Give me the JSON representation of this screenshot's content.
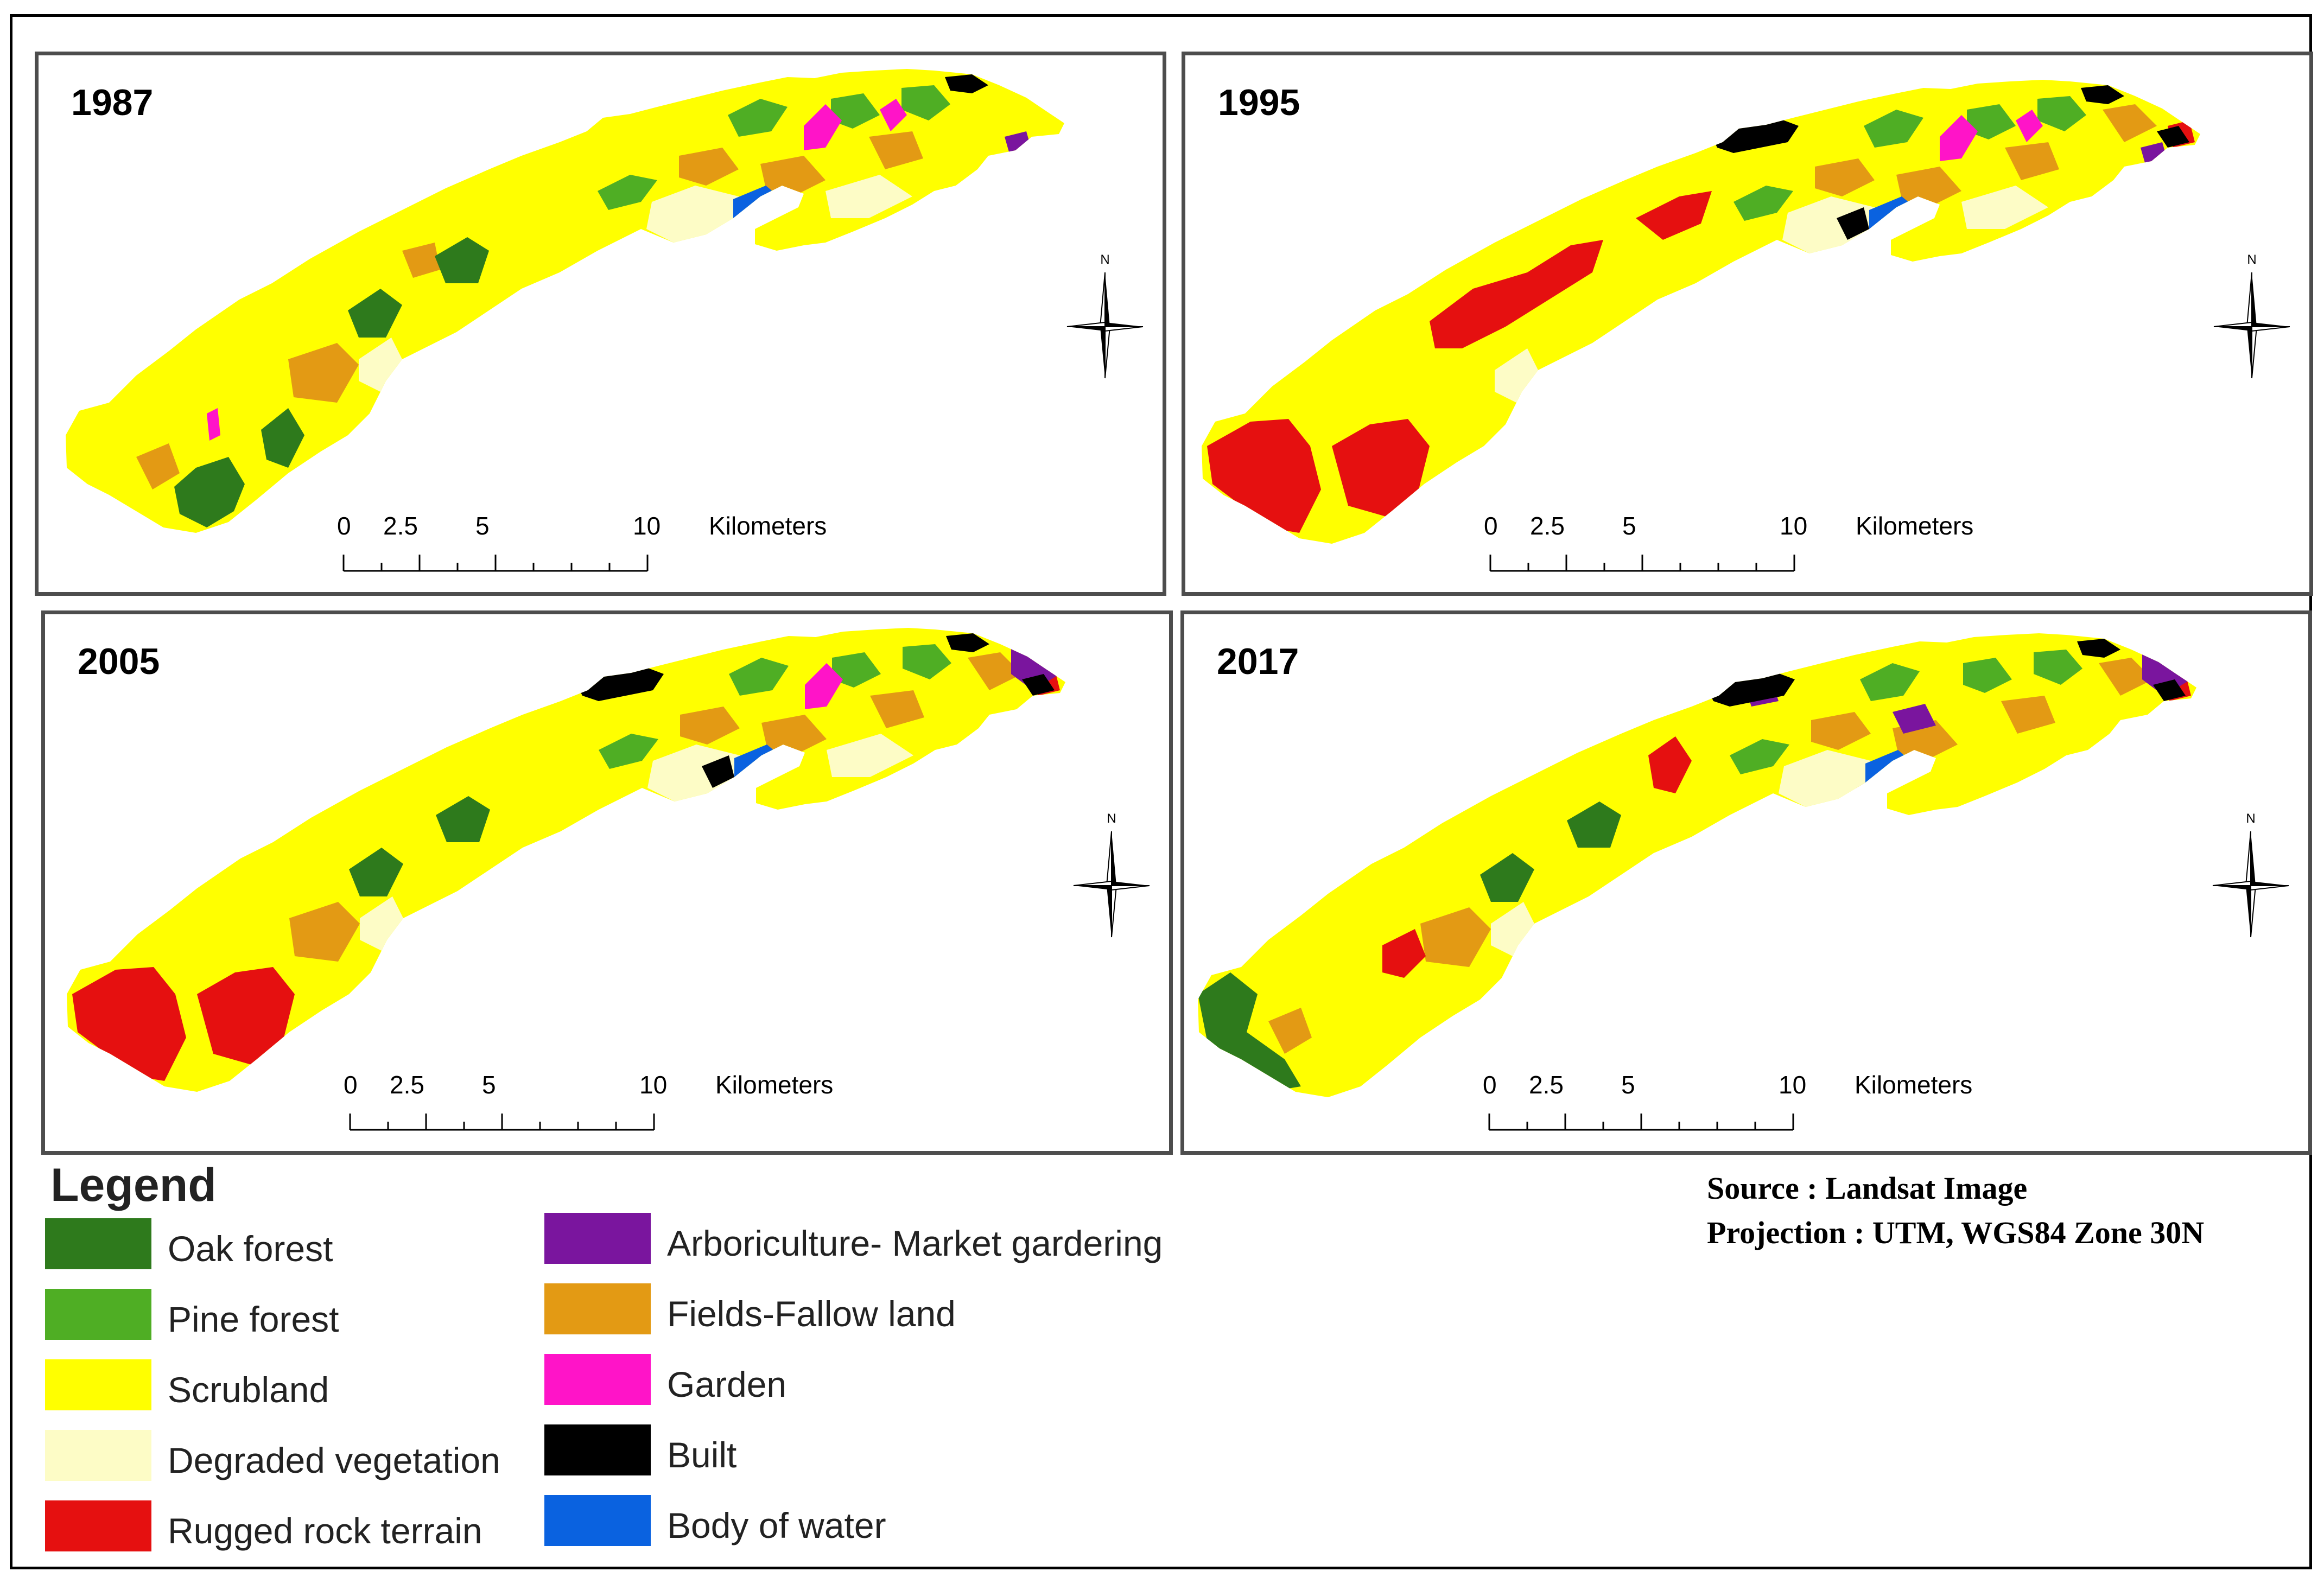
{
  "panels": [
    {
      "id": "p1987",
      "year": "1987"
    },
    {
      "id": "p1995",
      "year": "1995"
    },
    {
      "id": "p2005",
      "year": "2005"
    },
    {
      "id": "p2017",
      "year": "2017"
    }
  ],
  "scale_bar": {
    "ticks": [
      "0",
      "2.5",
      "5",
      "10"
    ],
    "unit": "Kilometers"
  },
  "north_arrow": {
    "label": "N",
    "icon": "compass-rose-icon"
  },
  "legend": {
    "title": "Legend",
    "items": [
      {
        "label": "Oak forest",
        "color": "#2e7a1c"
      },
      {
        "label": "Pine forest",
        "color": "#4fae24"
      },
      {
        "label": "Scrubland",
        "color": "#ffff00"
      },
      {
        "label": "Degraded vegetation",
        "color": "#fdfcc6"
      },
      {
        "label": "Rugged rock terrain",
        "color": "#e51010"
      },
      {
        "label": "Arboriculture- Market gardering",
        "color": "#7a159e"
      },
      {
        "label": "Fields-Fallow land",
        "color": "#e39a14"
      },
      {
        "label": "Garden",
        "color": "#ff14c8"
      },
      {
        "label": "Built",
        "color": "#000000"
      },
      {
        "label": "Body of water",
        "color": "#0a62e0"
      }
    ]
  },
  "source": {
    "line1": "Source : Landsat Image",
    "line2": "Projection : UTM, WGS84 Zone 30N"
  }
}
